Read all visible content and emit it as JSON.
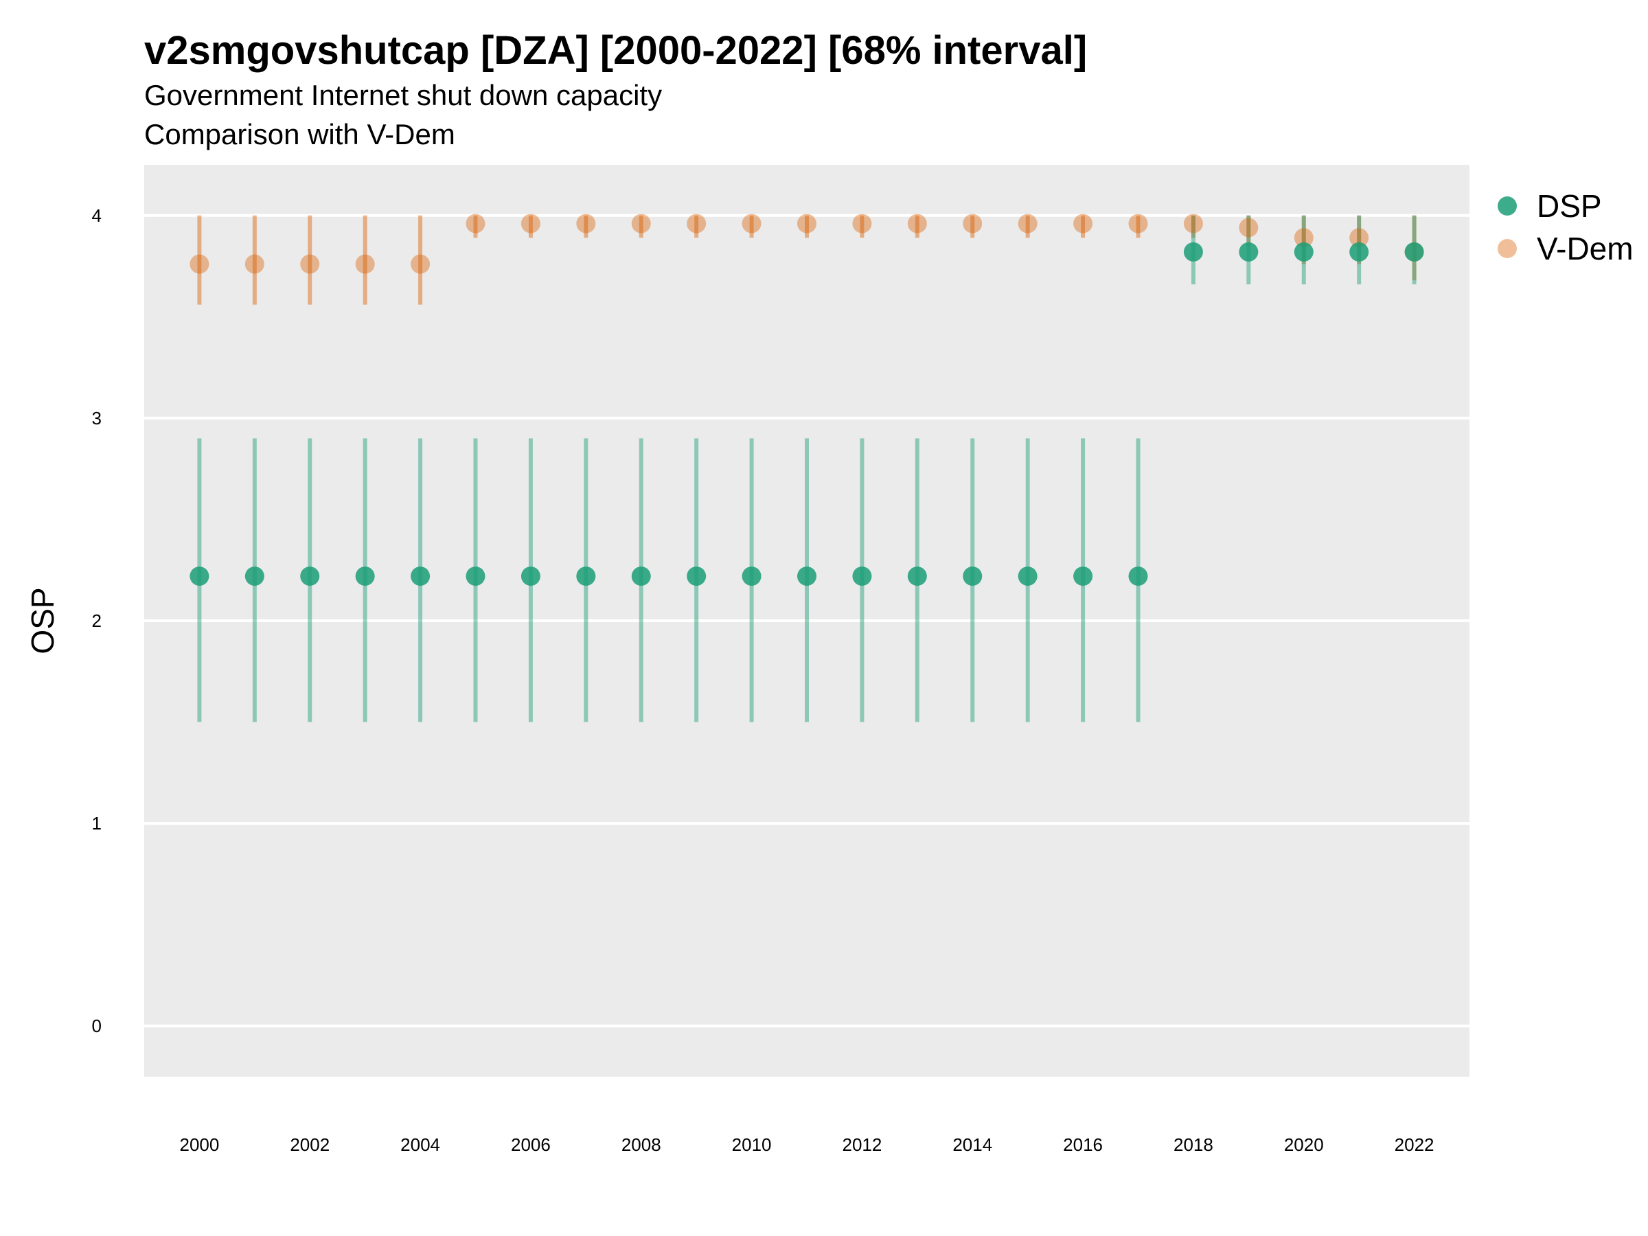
{
  "title": "v2smgovshutcap [DZA] [2000-2022] [68% interval]",
  "subtitle_1": "Government Internet shut down capacity",
  "subtitle_2": "Comparison with V-Dem",
  "chart_data": {
    "type": "scatter",
    "title": "v2smgovshutcap [DZA] [2000-2022] [68% interval]",
    "subtitle": [
      "Government Internet shut down capacity",
      "Comparison with V-Dem"
    ],
    "xlabel": "",
    "ylabel": "OSP",
    "xlim": [
      1999,
      2023
    ],
    "ylim": [
      -0.25,
      4.25
    ],
    "x_ticks": [
      "2000",
      "2002",
      "2004",
      "2006",
      "2008",
      "2010",
      "2012",
      "2014",
      "2016",
      "2018",
      "2020",
      "2022"
    ],
    "y_ticks": [
      "0",
      "1",
      "2",
      "3",
      "4"
    ],
    "grid": true,
    "legend_position": "right",
    "x": [
      2000,
      2001,
      2002,
      2003,
      2004,
      2005,
      2006,
      2007,
      2008,
      2009,
      2010,
      2011,
      2012,
      2013,
      2014,
      2015,
      2016,
      2017,
      2018,
      2019,
      2020,
      2021,
      2022
    ],
    "series": [
      {
        "name": "DSP",
        "color": "#1b9e77",
        "values": [
          2.22,
          2.22,
          2.22,
          2.22,
          2.22,
          2.22,
          2.22,
          2.22,
          2.22,
          2.22,
          2.22,
          2.22,
          2.22,
          2.22,
          2.22,
          2.22,
          2.22,
          2.22,
          3.82,
          3.82,
          3.82,
          3.82,
          3.82
        ],
        "lower": [
          1.5,
          1.5,
          1.5,
          1.5,
          1.5,
          1.5,
          1.5,
          1.5,
          1.5,
          1.5,
          1.5,
          1.5,
          1.5,
          1.5,
          1.5,
          1.5,
          1.5,
          1.5,
          3.66,
          3.66,
          3.66,
          3.66,
          3.66
        ],
        "upper": [
          2.9,
          2.9,
          2.9,
          2.9,
          2.9,
          2.9,
          2.9,
          2.9,
          2.9,
          2.9,
          2.9,
          2.9,
          2.9,
          2.9,
          2.9,
          2.9,
          2.9,
          2.9,
          4.0,
          4.0,
          4.0,
          4.0,
          4.0
        ]
      },
      {
        "name": "V-Dem",
        "color": "#d95f02",
        "values": [
          3.76,
          3.76,
          3.76,
          3.76,
          3.76,
          3.96,
          3.96,
          3.96,
          3.96,
          3.96,
          3.96,
          3.96,
          3.96,
          3.96,
          3.96,
          3.96,
          3.96,
          3.96,
          3.96,
          3.94,
          3.89,
          3.89,
          3.82
        ],
        "lower": [
          3.56,
          3.56,
          3.56,
          3.56,
          3.56,
          3.89,
          3.89,
          3.89,
          3.89,
          3.89,
          3.89,
          3.89,
          3.89,
          3.89,
          3.89,
          3.89,
          3.89,
          3.89,
          3.89,
          3.85,
          3.76,
          3.76,
          3.68
        ],
        "upper": [
          4.0,
          4.0,
          4.0,
          4.0,
          4.0,
          4.0,
          4.0,
          4.0,
          4.0,
          4.0,
          4.0,
          4.0,
          4.0,
          4.0,
          4.0,
          4.0,
          4.0,
          4.0,
          4.0,
          4.0,
          4.0,
          4.0,
          4.0
        ]
      }
    ]
  }
}
